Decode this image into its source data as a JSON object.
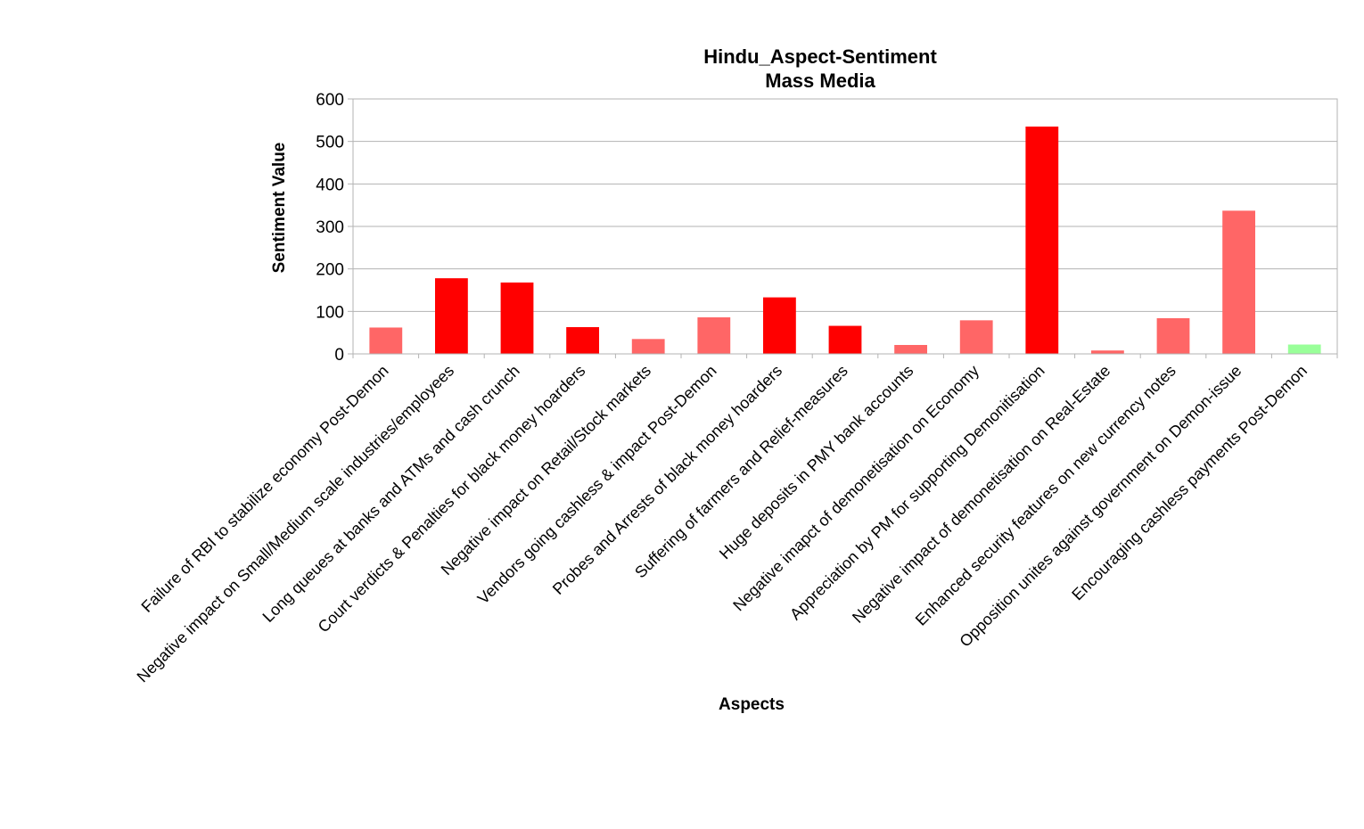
{
  "chart_data": {
    "type": "bar",
    "title": "Hindu_Aspect-Sentiment",
    "subtitle": "Mass Media",
    "xlabel": "Aspects",
    "ylabel": "Sentiment Value",
    "ylim": [
      0,
      600
    ],
    "yticks": [
      0,
      100,
      200,
      300,
      400,
      500,
      600
    ],
    "ytick_labels": [
      "0",
      "100",
      "200",
      "300",
      "400",
      "500",
      "600"
    ],
    "grid": true,
    "legend": "none",
    "categories": [
      "Failure of RBI to stabilize economy Post-Demon",
      "Negative impact on Small/Medium scale industries/employees",
      "Long queues at banks and ATMs and cash crunch",
      "Court verdicts & Penalties for black money hoarders",
      "Negative impact on Retail/Stock markets",
      "Vendors going cashless & impact Post-Demon",
      "Probes and Arrests of black money hoarders",
      "Suffering of farmers and Relief-measures",
      "Huge deposits in PMY bank accounts",
      "Negative imapct of demonetisation on Economy",
      "Appreciation by PM for supporting Demonitisation",
      "Negative impact of demonetisation on Real-Estate",
      "Enhanced security features on new currency notes",
      "Opposition unites against government on Demon-issue",
      "Encouraging cashless payments Post-Demon"
    ],
    "values": [
      62,
      178,
      168,
      63,
      35,
      86,
      133,
      66,
      21,
      79,
      535,
      8,
      84,
      337,
      22
    ],
    "colors": [
      "#ff6666",
      "#ff0000",
      "#ff0000",
      "#ff0000",
      "#ff6666",
      "#ff6666",
      "#ff0000",
      "#ff0000",
      "#ff6666",
      "#ff6666",
      "#ff0000",
      "#ff6666",
      "#ff6666",
      "#ff6666",
      "#99ff99"
    ]
  }
}
